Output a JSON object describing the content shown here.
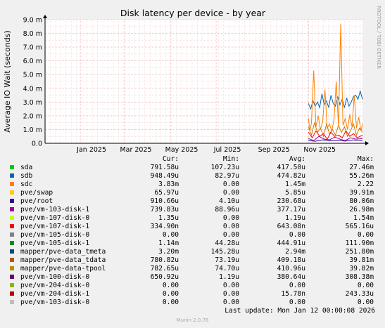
{
  "chart_data": {
    "type": "line",
    "title": "Disk latency per device - by year",
    "ylabel": "Average IO Wait (seconds)",
    "ylim": [
      0,
      9.0
    ],
    "yticks": [
      {
        "value": 0,
        "label": "0.0"
      },
      {
        "value": 1.0,
        "label": "1.0 m"
      },
      {
        "value": 2.0,
        "label": "2.0 m"
      },
      {
        "value": 3.0,
        "label": "3.0 m"
      },
      {
        "value": 4.0,
        "label": "4.0 m"
      },
      {
        "value": 5.0,
        "label": "5.0 m"
      },
      {
        "value": 6.0,
        "label": "6.0 m"
      },
      {
        "value": 7.0,
        "label": "7.0 m"
      },
      {
        "value": 8.0,
        "label": "8.0 m"
      },
      {
        "value": 9.0,
        "label": "9.0 m"
      }
    ],
    "xrange": [
      "2024-11-15",
      "2026-01-12"
    ],
    "xticks": [
      {
        "date": "2025-01-01",
        "label": "Jan 2025"
      },
      {
        "date": "2025-03-01",
        "label": "Mar 2025"
      },
      {
        "date": "2025-05-01",
        "label": "May 2025"
      },
      {
        "date": "2025-07-01",
        "label": "Jul 2025"
      },
      {
        "date": "2025-09-01",
        "label": "Sep 2025"
      },
      {
        "date": "2025-11-01",
        "label": "Nov 2025"
      }
    ],
    "grid": true,
    "side_label": "RRDTOOL / TOBI OETIKER",
    "series": [
      {
        "name": "sdb",
        "color": "#0066b3",
        "x": [
          "2025-11-01",
          "2025-11-04",
          "2025-11-07",
          "2025-11-10",
          "2025-11-13",
          "2025-11-16",
          "2025-11-19",
          "2025-11-22",
          "2025-11-25",
          "2025-11-28",
          "2025-12-01",
          "2025-12-04",
          "2025-12-07",
          "2025-12-10",
          "2025-12-13",
          "2025-12-16",
          "2025-12-19",
          "2025-12-22",
          "2025-12-25",
          "2025-12-28",
          "2025-12-31",
          "2026-01-03",
          "2026-01-06",
          "2026-01-09",
          "2026-01-12"
        ],
        "y": [
          2.9,
          2.5,
          3.1,
          2.7,
          3.0,
          2.6,
          3.6,
          2.8,
          3.1,
          2.6,
          3.5,
          2.9,
          2.7,
          3.4,
          2.8,
          3.2,
          2.6,
          3.3,
          2.7,
          3.0,
          3.4,
          3.5,
          3.2,
          3.8,
          3.2
        ]
      },
      {
        "name": "sdc",
        "color": "#ff8000",
        "x": [
          "2025-11-01",
          "2025-11-03",
          "2025-11-05",
          "2025-11-08",
          "2025-11-11",
          "2025-11-14",
          "2025-11-17",
          "2025-11-20",
          "2025-11-23",
          "2025-11-26",
          "2025-11-29",
          "2025-12-02",
          "2025-12-05",
          "2025-12-08",
          "2025-12-11",
          "2025-12-14",
          "2025-12-17",
          "2025-12-20",
          "2025-12-23",
          "2025-12-26",
          "2025-12-29",
          "2026-01-01",
          "2026-01-04",
          "2026-01-07",
          "2026-01-10",
          "2026-01-12"
        ],
        "y": [
          1.8,
          0.9,
          1.5,
          5.3,
          1.2,
          2.0,
          1.0,
          1.6,
          3.9,
          1.1,
          1.4,
          0.9,
          1.7,
          4.5,
          1.2,
          8.7,
          1.3,
          1.8,
          1.0,
          2.1,
          1.2,
          3.5,
          1.1,
          1.9,
          0.9,
          1.4
        ]
      },
      {
        "name": "mapper/pve-data_tdata",
        "color": "#cc7a00",
        "x": [
          "2025-11-01",
          "2025-11-05",
          "2025-11-09",
          "2025-11-13",
          "2025-11-17",
          "2025-11-21",
          "2025-11-25",
          "2025-11-29",
          "2025-12-03",
          "2025-12-07",
          "2025-12-11",
          "2025-12-15",
          "2025-12-19",
          "2025-12-23",
          "2025-12-27",
          "2025-12-31",
          "2026-01-04",
          "2026-01-08",
          "2026-01-12"
        ],
        "y": [
          1.2,
          0.6,
          1.5,
          0.8,
          1.1,
          0.5,
          1.4,
          0.7,
          1.0,
          0.6,
          1.3,
          0.8,
          1.2,
          0.5,
          0.9,
          1.4,
          0.6,
          1.1,
          0.8
        ]
      },
      {
        "name": "pve/vm-107-disk-1",
        "color": "#ff0000",
        "x": [
          "2025-11-01",
          "2025-11-06",
          "2025-11-11",
          "2025-11-16",
          "2025-11-21",
          "2025-11-26",
          "2025-12-01",
          "2025-12-06",
          "2025-12-11",
          "2025-12-16",
          "2025-12-21",
          "2025-12-26",
          "2025-12-31",
          "2026-01-05",
          "2026-01-12"
        ],
        "y": [
          0.8,
          0.4,
          0.9,
          0.5,
          0.7,
          0.3,
          0.8,
          0.5,
          0.6,
          0.4,
          0.9,
          0.5,
          0.7,
          0.4,
          0.6
        ]
      },
      {
        "name": "pve/vm-103-disk-1",
        "color": "#990099",
        "x": [
          "2025-11-01",
          "2025-11-08",
          "2025-11-15",
          "2025-11-22",
          "2025-11-29",
          "2025-12-06",
          "2025-12-13",
          "2025-12-20",
          "2025-12-27",
          "2026-01-03",
          "2026-01-12"
        ],
        "y": [
          0.35,
          0.2,
          0.5,
          0.3,
          0.25,
          0.45,
          0.3,
          0.2,
          0.4,
          0.3,
          0.35
        ]
      },
      {
        "name": "pve/root",
        "color": "#330099",
        "x": [
          "2025-11-01",
          "2025-11-10",
          "2025-11-20",
          "2025-11-30",
          "2025-12-10",
          "2025-12-20",
          "2025-12-30",
          "2026-01-12"
        ],
        "y": [
          0.2,
          0.15,
          0.25,
          0.18,
          0.22,
          0.16,
          0.24,
          0.2
        ]
      }
    ]
  },
  "legend": {
    "headers": {
      "cur": "Cur:",
      "min": "Min:",
      "avg": "Avg:",
      "max": "Max:"
    },
    "rows": [
      {
        "name": "sda",
        "color": "#00cc00",
        "cur": "791.58u",
        "min": "107.23u",
        "avg": "417.50u",
        "max": "27.46m"
      },
      {
        "name": "sdb",
        "color": "#0066b3",
        "cur": "948.49u",
        "min": "82.97u",
        "avg": "474.82u",
        "max": "55.26m"
      },
      {
        "name": "sdc",
        "color": "#ff8000",
        "cur": "3.83m",
        "min": "0.00",
        "avg": "1.45m",
        "max": "2.22"
      },
      {
        "name": "pve/swap",
        "color": "#ffcc00",
        "cur": "65.97u",
        "min": "0.00",
        "avg": "5.85u",
        "max": "39.91m"
      },
      {
        "name": "pve/root",
        "color": "#330099",
        "cur": "910.66u",
        "min": "4.10u",
        "avg": "230.68u",
        "max": "80.06m"
      },
      {
        "name": "pve/vm-103-disk-1",
        "color": "#990099",
        "cur": "739.83u",
        "min": "88.96u",
        "avg": "377.17u",
        "max": "26.98m"
      },
      {
        "name": "pve/vm-107-disk-0",
        "color": "#ccff00",
        "cur": "1.35u",
        "min": "0.00",
        "avg": "1.19u",
        "max": "1.54m"
      },
      {
        "name": "pve/vm-107-disk-1",
        "color": "#ff0000",
        "cur": "334.90n",
        "min": "0.00",
        "avg": "643.08n",
        "max": "565.16u"
      },
      {
        "name": "pve/vm-105-disk-0",
        "color": "#808080",
        "cur": "0.00",
        "min": "0.00",
        "avg": "0.00",
        "max": "0.00"
      },
      {
        "name": "pve/vm-105-disk-1",
        "color": "#008f00",
        "cur": "1.14m",
        "min": "44.28u",
        "avg": "444.91u",
        "max": "111.90m"
      },
      {
        "name": "mapper/pve-data_tmeta",
        "color": "#00487d",
        "cur": "3.20m",
        "min": "145.28u",
        "avg": "2.94m",
        "max": "251.80m"
      },
      {
        "name": "mapper/pve-data_tdata",
        "color": "#b35a00",
        "cur": "780.82u",
        "min": "73.19u",
        "avg": "409.18u",
        "max": "39.81m"
      },
      {
        "name": "mapper/pve-data-tpool",
        "color": "#b38f00",
        "cur": "782.65u",
        "min": "74.70u",
        "avg": "410.96u",
        "max": "39.82m"
      },
      {
        "name": "pve/vm-100-disk-0",
        "color": "#6b006b",
        "cur": "650.92u",
        "min": "1.19u",
        "avg": "380.64u",
        "max": "308.38m"
      },
      {
        "name": "pve/vm-204-disk-0",
        "color": "#8fb300",
        "cur": "0.00",
        "min": "0.00",
        "avg": "0.00",
        "max": "0.00"
      },
      {
        "name": "pve/vm-204-disk-1",
        "color": "#b30000",
        "cur": "0.00",
        "min": "0.00",
        "avg": "15.78n",
        "max": "243.33u"
      },
      {
        "name": "pve/vm-103-disk-0",
        "color": "#bebebe",
        "cur": "0.00",
        "min": "0.00",
        "avg": "0.00",
        "max": "0.00"
      }
    ]
  },
  "footer": {
    "last_update": "Last update: Mon Jan 12 00:00:08 2026",
    "munin_version": "Munin 2.0.76"
  }
}
